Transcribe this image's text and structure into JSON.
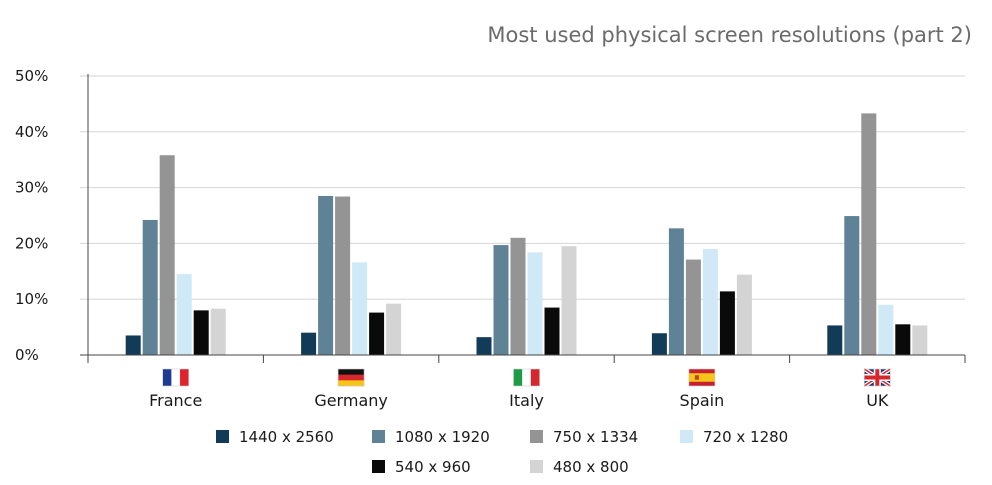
{
  "chart_data": {
    "type": "bar",
    "title": "Most used physical screen resolutions (part 2)",
    "xlabel": "",
    "ylabel": "",
    "ylim": [
      0,
      50
    ],
    "yticks": [
      "0%",
      "10%",
      "20%",
      "30%",
      "40%",
      "50%"
    ],
    "grid": true,
    "legend_position": "bottom",
    "categories": [
      "France",
      "Germany",
      "Italy",
      "Spain",
      "UK"
    ],
    "flags": [
      "france-flag-icon",
      "germany-flag-icon",
      "italy-flag-icon",
      "spain-flag-icon",
      "uk-flag-icon"
    ],
    "series": [
      {
        "name": "1440 x 2560",
        "color": "#123b57",
        "values": [
          3.5,
          4.0,
          3.2,
          3.9,
          5.3
        ]
      },
      {
        "name": "1080 x 1920",
        "color": "#5f8296",
        "values": [
          24.2,
          28.5,
          19.7,
          22.7,
          24.9
        ]
      },
      {
        "name": "750 x 1334",
        "color": "#949494",
        "values": [
          35.8,
          28.4,
          21.0,
          17.1,
          43.3
        ]
      },
      {
        "name": "720 x 1280",
        "color": "#cfe9f7",
        "values": [
          14.5,
          16.6,
          18.4,
          19.0,
          9.0
        ]
      },
      {
        "name": "540 x 960",
        "color": "#0a0a0a",
        "values": [
          8.0,
          7.6,
          8.5,
          11.4,
          5.5
        ]
      },
      {
        "name": "480 x 800",
        "color": "#d4d4d4",
        "values": [
          8.3,
          9.2,
          19.5,
          14.4,
          5.3
        ]
      }
    ]
  }
}
